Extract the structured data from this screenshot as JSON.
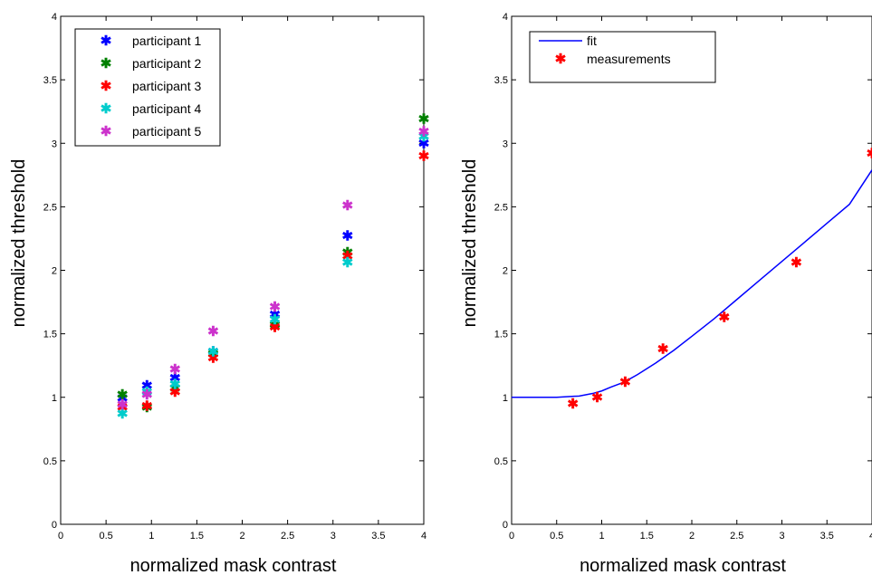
{
  "chart_data": [
    {
      "type": "scatter",
      "xlabel": "normalized mask contrast",
      "ylabel": "normalized threshold",
      "xlim": [
        0,
        4
      ],
      "ylim": [
        0,
        4
      ],
      "xticks": [
        "0",
        "0.5",
        "1",
        "1.5",
        "2",
        "2.5",
        "3",
        "3.5",
        "4"
      ],
      "yticks": [
        "0",
        "0.5",
        "1",
        "1.5",
        "2",
        "2.5",
        "3",
        "3.5",
        "4"
      ],
      "legend_position": "top-left",
      "x": [
        0.68,
        0.95,
        1.26,
        1.68,
        2.36,
        3.16,
        4.0
      ],
      "series": [
        {
          "name": "participant 1",
          "color": "#0000ff",
          "marker": "*",
          "values": [
            0.99,
            1.09,
            1.15,
            1.36,
            1.65,
            2.27,
            3.0
          ]
        },
        {
          "name": "participant 2",
          "color": "#008000",
          "marker": "*",
          "values": [
            1.02,
            0.92,
            1.07,
            1.34,
            1.57,
            2.14,
            3.19
          ]
        },
        {
          "name": "participant 3",
          "color": "#ff0000",
          "marker": "*",
          "values": [
            0.92,
            0.93,
            1.04,
            1.31,
            1.55,
            2.11,
            2.9
          ]
        },
        {
          "name": "participant 4",
          "color": "#00cccc",
          "marker": "*",
          "values": [
            0.87,
            1.04,
            1.1,
            1.36,
            1.61,
            2.06,
            3.05
          ]
        },
        {
          "name": "participant 5",
          "color": "#cc33cc",
          "marker": "*",
          "values": [
            0.94,
            1.02,
            1.22,
            1.52,
            1.71,
            2.51,
            3.09
          ]
        }
      ]
    },
    {
      "type": "line",
      "xlabel": "normalized mask contrast",
      "ylabel": "normalized threshold",
      "xlim": [
        0,
        4
      ],
      "ylim": [
        0,
        4
      ],
      "xticks": [
        "0",
        "0.5",
        "1",
        "1.5",
        "2",
        "2.5",
        "3",
        "3.5",
        "4"
      ],
      "yticks": [
        "0",
        "0.5",
        "1",
        "1.5",
        "2",
        "2.5",
        "3",
        "3.5",
        "4"
      ],
      "legend_position": "top-left",
      "series": [
        {
          "name": "fit",
          "color": "#0000ff",
          "style": "line",
          "x": [
            0,
            0.25,
            0.5,
            0.75,
            0.9,
            1.0,
            1.1,
            1.25,
            1.4,
            1.6,
            1.8,
            2.0,
            2.25,
            2.5,
            2.75,
            3.0,
            3.25,
            3.5,
            3.75,
            4.0
          ],
          "values": [
            1.0,
            1.0,
            1.0,
            1.01,
            1.03,
            1.05,
            1.08,
            1.12,
            1.18,
            1.27,
            1.37,
            1.48,
            1.62,
            1.77,
            1.92,
            2.07,
            2.22,
            2.37,
            2.52,
            2.79
          ]
        },
        {
          "name": "measurements",
          "color": "#ff0000",
          "style": "marker",
          "x": [
            0.68,
            0.95,
            1.26,
            1.68,
            2.36,
            3.16,
            4.0
          ],
          "values": [
            0.95,
            1.0,
            1.12,
            1.38,
            1.63,
            2.06,
            2.92
          ]
        }
      ]
    }
  ]
}
